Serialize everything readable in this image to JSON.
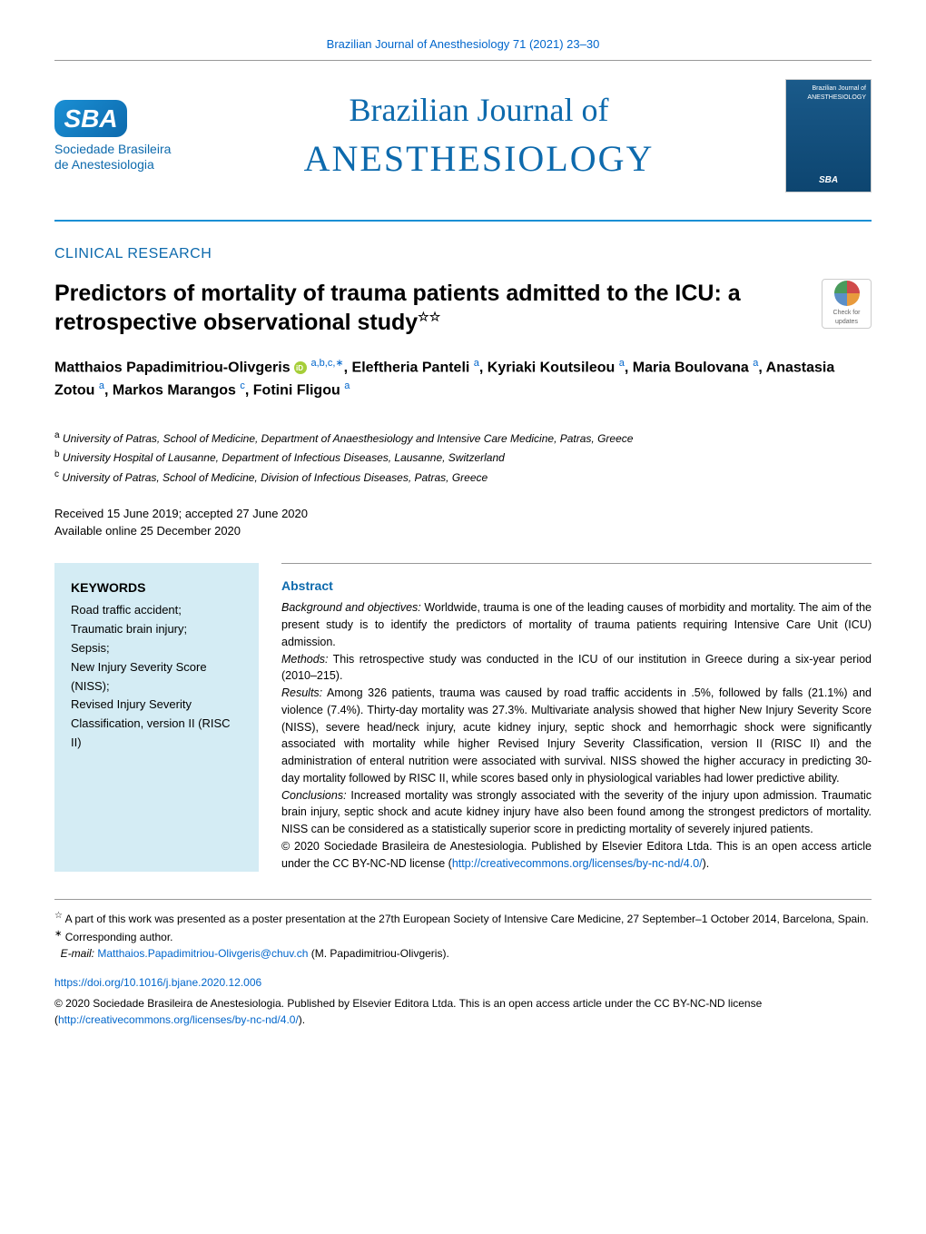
{
  "header": {
    "citation": "Brazilian Journal of Anesthesiology 71 (2021) 23–30",
    "journal_line1": "Brazilian Journal of",
    "journal_line2": "ANESTHESIOLOGY",
    "logo_org_line1": "Sociedade Brasileira",
    "logo_org_line2": "de Anestesiologia",
    "cover_title": "Brazilian Journal of ANESTHESIOLOGY"
  },
  "section": {
    "label": "CLINICAL RESEARCH"
  },
  "article": {
    "title": "Predictors of mortality of trauma patients admitted to the ICU: a retrospective observational study",
    "check_updates": "Check for updates"
  },
  "authors": {
    "list": [
      {
        "name": "Matthaios Papadimitriou-Olivgeris",
        "sup": "a,b,c,",
        "corr": "∗",
        "orcid": true
      },
      {
        "name": "Eleftheria Panteli",
        "sup": "a"
      },
      {
        "name": "Kyriaki Koutsileou",
        "sup": "a"
      },
      {
        "name": "Maria Boulovana",
        "sup": "a"
      },
      {
        "name": "Anastasia Zotou",
        "sup": "a"
      },
      {
        "name": "Markos Marangos",
        "sup": "c"
      },
      {
        "name": "Fotini Fligou",
        "sup": "a"
      }
    ]
  },
  "affiliations": [
    {
      "label": "a",
      "text": "University of Patras, School of Medicine, Department of Anaesthesiology and Intensive Care Medicine, Patras, Greece"
    },
    {
      "label": "b",
      "text": "University Hospital of Lausanne, Department of Infectious Diseases, Lausanne, Switzerland"
    },
    {
      "label": "c",
      "text": "University of Patras, School of Medicine, Division of Infectious Diseases, Patras, Greece"
    }
  ],
  "dates": {
    "received": "Received 15 June 2019; accepted 27 June 2020",
    "online": "Available online 25 December 2020"
  },
  "keywords": {
    "title": "KEYWORDS",
    "items": "Road traffic accident;\nTraumatic brain injury;\nSepsis;\nNew Injury Severity Score (NISS);\nRevised Injury Severity Classification, version II (RISC II)"
  },
  "abstract": {
    "title": "Abstract",
    "background_label": "Background and objectives:",
    "background": "Worldwide, trauma is one of the leading causes of morbidity and mortality. The aim of the present study is to identify the predictors of mortality of trauma patients requiring Intensive Care Unit (ICU) admission.",
    "methods_label": "Methods:",
    "methods": "This retrospective study was conducted in the ICU of our institution in Greece during a six-year period (2010–215).",
    "results_label": "Results:",
    "results": "Among 326 patients, trauma was caused by road traffic accidents in .5%, followed by falls (21.1%) and violence (7.4%). Thirty-day mortality was 27.3%. Multivariate analysis showed that higher New Injury Severity Score (NISS), severe head/neck injury, acute kidney injury, septic shock and hemorrhagic shock were significantly associated with mortality while higher Revised Injury Severity Classification, version II (RISC II) and the administration of enteral nutrition were associated with survival. NISS showed the higher accuracy in predicting 30-day mortality followed by RISC II, while scores based only in physiological variables had lower predictive ability.",
    "conclusions_label": "Conclusions:",
    "conclusions": "Increased mortality was strongly associated with the severity of the injury upon admission. Traumatic brain injury, septic shock and acute kidney injury have also been found among the strongest predictors of mortality. NISS can be considered as a statistically superior score in predicting mortality of severely injured patients.",
    "copyright": "© 2020 Sociedade Brasileira de Anestesiologia. Published by Elsevier Editora Ltda. This is an open access article under the CC BY-NC-ND license (",
    "license_url": "http://creativecommons.org/licenses/by-nc-nd/4.0/",
    "copyright_end": ")."
  },
  "footnotes": {
    "presentation": "A part of this work was presented as a poster presentation at the 27th European Society of Intensive Care Medicine, 27 September–1 October 2014, Barcelona, Spain.",
    "corr_label": "Corresponding author.",
    "email_label": "E-mail:",
    "email": "Matthaios.Papadimitriou-Olivgeris@chuv.ch",
    "email_name": "(M. Papadimitriou-Olivgeris).",
    "doi": "https://doi.org/10.1016/j.bjane.2020.12.006",
    "bottom_copyright": "© 2020 Sociedade Brasileira de Anestesiologia. Published by Elsevier Editora Ltda. This is an open access article under the CC BY-NC-ND license (",
    "bottom_license_url": "http://creativecommons.org/licenses/by-nc-nd/4.0/",
    "bottom_copyright_end": ")."
  },
  "colors": {
    "primary_blue": "#0d6aad",
    "link_blue": "#0066cc",
    "keywords_bg": "#d4ecf4",
    "orcid_green": "#a6ce39"
  }
}
